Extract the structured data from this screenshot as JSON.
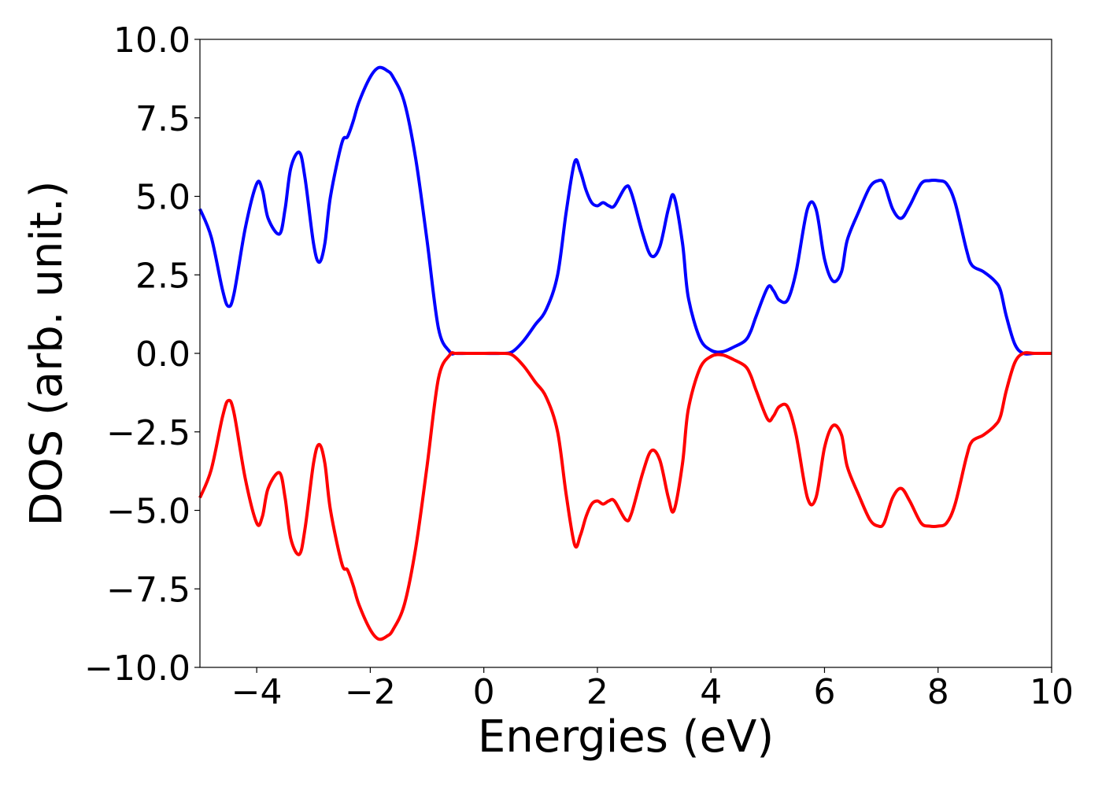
{
  "chart_data": {
    "type": "line",
    "title": "",
    "xlabel": "Energies (eV)",
    "ylabel": "DOS (arb. unit.)",
    "xlim": [
      -5,
      10
    ],
    "ylim": [
      -10.0,
      10.0
    ],
    "grid": false,
    "legend": "none",
    "x_ticks": [
      "−4",
      "−2",
      "0",
      "2",
      "4",
      "6",
      "8",
      "10"
    ],
    "x_tick_values": [
      -4,
      -2,
      0,
      2,
      4,
      6,
      8,
      10
    ],
    "y_ticks": [
      "10.0",
      "7.5",
      "5.0",
      "2.5",
      "0.0",
      "−2.5",
      "−5.0",
      "−7.5",
      "−10.0"
    ],
    "y_tick_values": [
      10.0,
      7.5,
      5.0,
      2.5,
      0.0,
      -2.5,
      -5.0,
      -7.5,
      -10.0
    ],
    "series": [
      {
        "color": "#0000ff",
        "x": [
          -5.0,
          -4.8,
          -4.6,
          -4.5,
          -4.4,
          -4.2,
          -4.0,
          -3.9,
          -3.8,
          -3.6,
          -3.5,
          -3.4,
          -3.25,
          -3.15,
          -3.0,
          -2.9,
          -2.8,
          -2.7,
          -2.5,
          -2.4,
          -2.3,
          -2.2,
          -2.0,
          -1.85,
          -1.7,
          -1.6,
          -1.4,
          -1.2,
          -1.0,
          -0.8,
          -0.6,
          -0.5,
          -0.3,
          0.0,
          0.3,
          0.5,
          0.7,
          0.9,
          1.1,
          1.3,
          1.45,
          1.6,
          1.7,
          1.8,
          1.9,
          2.0,
          2.1,
          2.2,
          2.3,
          2.5,
          2.6,
          2.8,
          2.95,
          3.1,
          3.25,
          3.35,
          3.5,
          3.6,
          3.8,
          4.0,
          4.2,
          4.4,
          4.6,
          4.7,
          4.8,
          5.0,
          5.1,
          5.2,
          5.35,
          5.5,
          5.7,
          5.85,
          6.0,
          6.15,
          6.3,
          6.4,
          6.6,
          6.8,
          6.95,
          7.05,
          7.2,
          7.35,
          7.5,
          7.7,
          7.85,
          8.0,
          8.15,
          8.3,
          8.5,
          8.6,
          8.8,
          9.0,
          9.1,
          9.2,
          9.35,
          9.5,
          9.7,
          10.0
        ],
        "y": [
          4.6,
          3.7,
          2.0,
          1.5,
          1.9,
          4.0,
          5.4,
          5.2,
          4.3,
          3.8,
          4.6,
          5.9,
          6.4,
          5.6,
          3.5,
          2.9,
          3.5,
          5.0,
          6.7,
          6.9,
          7.4,
          8.0,
          8.8,
          9.1,
          9.0,
          8.8,
          8.0,
          6.2,
          3.6,
          0.8,
          0.05,
          0.0,
          0.0,
          0.0,
          0.0,
          0.05,
          0.4,
          0.9,
          1.4,
          2.5,
          4.5,
          6.1,
          5.8,
          5.2,
          4.8,
          4.7,
          4.8,
          4.7,
          4.7,
          5.3,
          5.1,
          3.8,
          3.1,
          3.4,
          4.6,
          5.0,
          3.5,
          1.8,
          0.5,
          0.1,
          0.05,
          0.2,
          0.4,
          0.7,
          1.2,
          2.1,
          2.0,
          1.7,
          1.7,
          2.6,
          4.6,
          4.6,
          3.0,
          2.3,
          2.6,
          3.6,
          4.5,
          5.3,
          5.5,
          5.4,
          4.6,
          4.3,
          4.7,
          5.4,
          5.5,
          5.5,
          5.4,
          4.8,
          3.3,
          2.8,
          2.6,
          2.3,
          2.0,
          1.2,
          0.3,
          0.0,
          0.0,
          0.0
        ]
      },
      {
        "color": "#ff0000",
        "x": [
          -5.0,
          -4.8,
          -4.6,
          -4.5,
          -4.4,
          -4.2,
          -4.0,
          -3.9,
          -3.8,
          -3.6,
          -3.5,
          -3.4,
          -3.25,
          -3.15,
          -3.0,
          -2.9,
          -2.8,
          -2.7,
          -2.5,
          -2.4,
          -2.3,
          -2.2,
          -2.0,
          -1.85,
          -1.7,
          -1.6,
          -1.4,
          -1.2,
          -1.0,
          -0.8,
          -0.6,
          -0.5,
          -0.3,
          0.0,
          0.3,
          0.5,
          0.7,
          0.9,
          1.1,
          1.3,
          1.45,
          1.6,
          1.7,
          1.8,
          1.9,
          2.0,
          2.1,
          2.2,
          2.3,
          2.5,
          2.6,
          2.8,
          2.95,
          3.1,
          3.25,
          3.35,
          3.5,
          3.6,
          3.8,
          4.0,
          4.2,
          4.4,
          4.6,
          4.7,
          4.8,
          5.0,
          5.1,
          5.2,
          5.35,
          5.5,
          5.7,
          5.85,
          6.0,
          6.15,
          6.3,
          6.4,
          6.6,
          6.8,
          6.95,
          7.05,
          7.2,
          7.35,
          7.5,
          7.7,
          7.85,
          8.0,
          8.15,
          8.3,
          8.5,
          8.6,
          8.8,
          9.0,
          9.1,
          9.2,
          9.35,
          9.5,
          9.7,
          10.0
        ],
        "y": [
          -4.6,
          -3.7,
          -2.0,
          -1.5,
          -1.9,
          -4.0,
          -5.4,
          -5.2,
          -4.3,
          -3.8,
          -4.6,
          -5.9,
          -6.4,
          -5.6,
          -3.5,
          -2.9,
          -3.5,
          -5.0,
          -6.7,
          -6.9,
          -7.4,
          -8.0,
          -8.8,
          -9.1,
          -9.0,
          -8.8,
          -8.0,
          -6.2,
          -3.6,
          -0.8,
          -0.05,
          0.0,
          0.0,
          0.0,
          0.0,
          -0.05,
          -0.4,
          -0.9,
          -1.4,
          -2.5,
          -4.5,
          -6.1,
          -5.8,
          -5.2,
          -4.8,
          -4.7,
          -4.8,
          -4.7,
          -4.7,
          -5.3,
          -5.1,
          -3.8,
          -3.1,
          -3.4,
          -4.6,
          -5.0,
          -3.5,
          -1.8,
          -0.5,
          -0.1,
          -0.05,
          -0.2,
          -0.4,
          -0.7,
          -1.2,
          -2.1,
          -2.0,
          -1.7,
          -1.7,
          -2.6,
          -4.6,
          -4.6,
          -3.0,
          -2.3,
          -2.6,
          -3.6,
          -4.5,
          -5.3,
          -5.5,
          -5.4,
          -4.6,
          -4.3,
          -4.7,
          -5.4,
          -5.5,
          -5.5,
          -5.4,
          -4.8,
          -3.3,
          -2.8,
          -2.6,
          -2.3,
          -2.0,
          -1.2,
          -0.3,
          0.0,
          0.0,
          0.0
        ]
      }
    ]
  }
}
